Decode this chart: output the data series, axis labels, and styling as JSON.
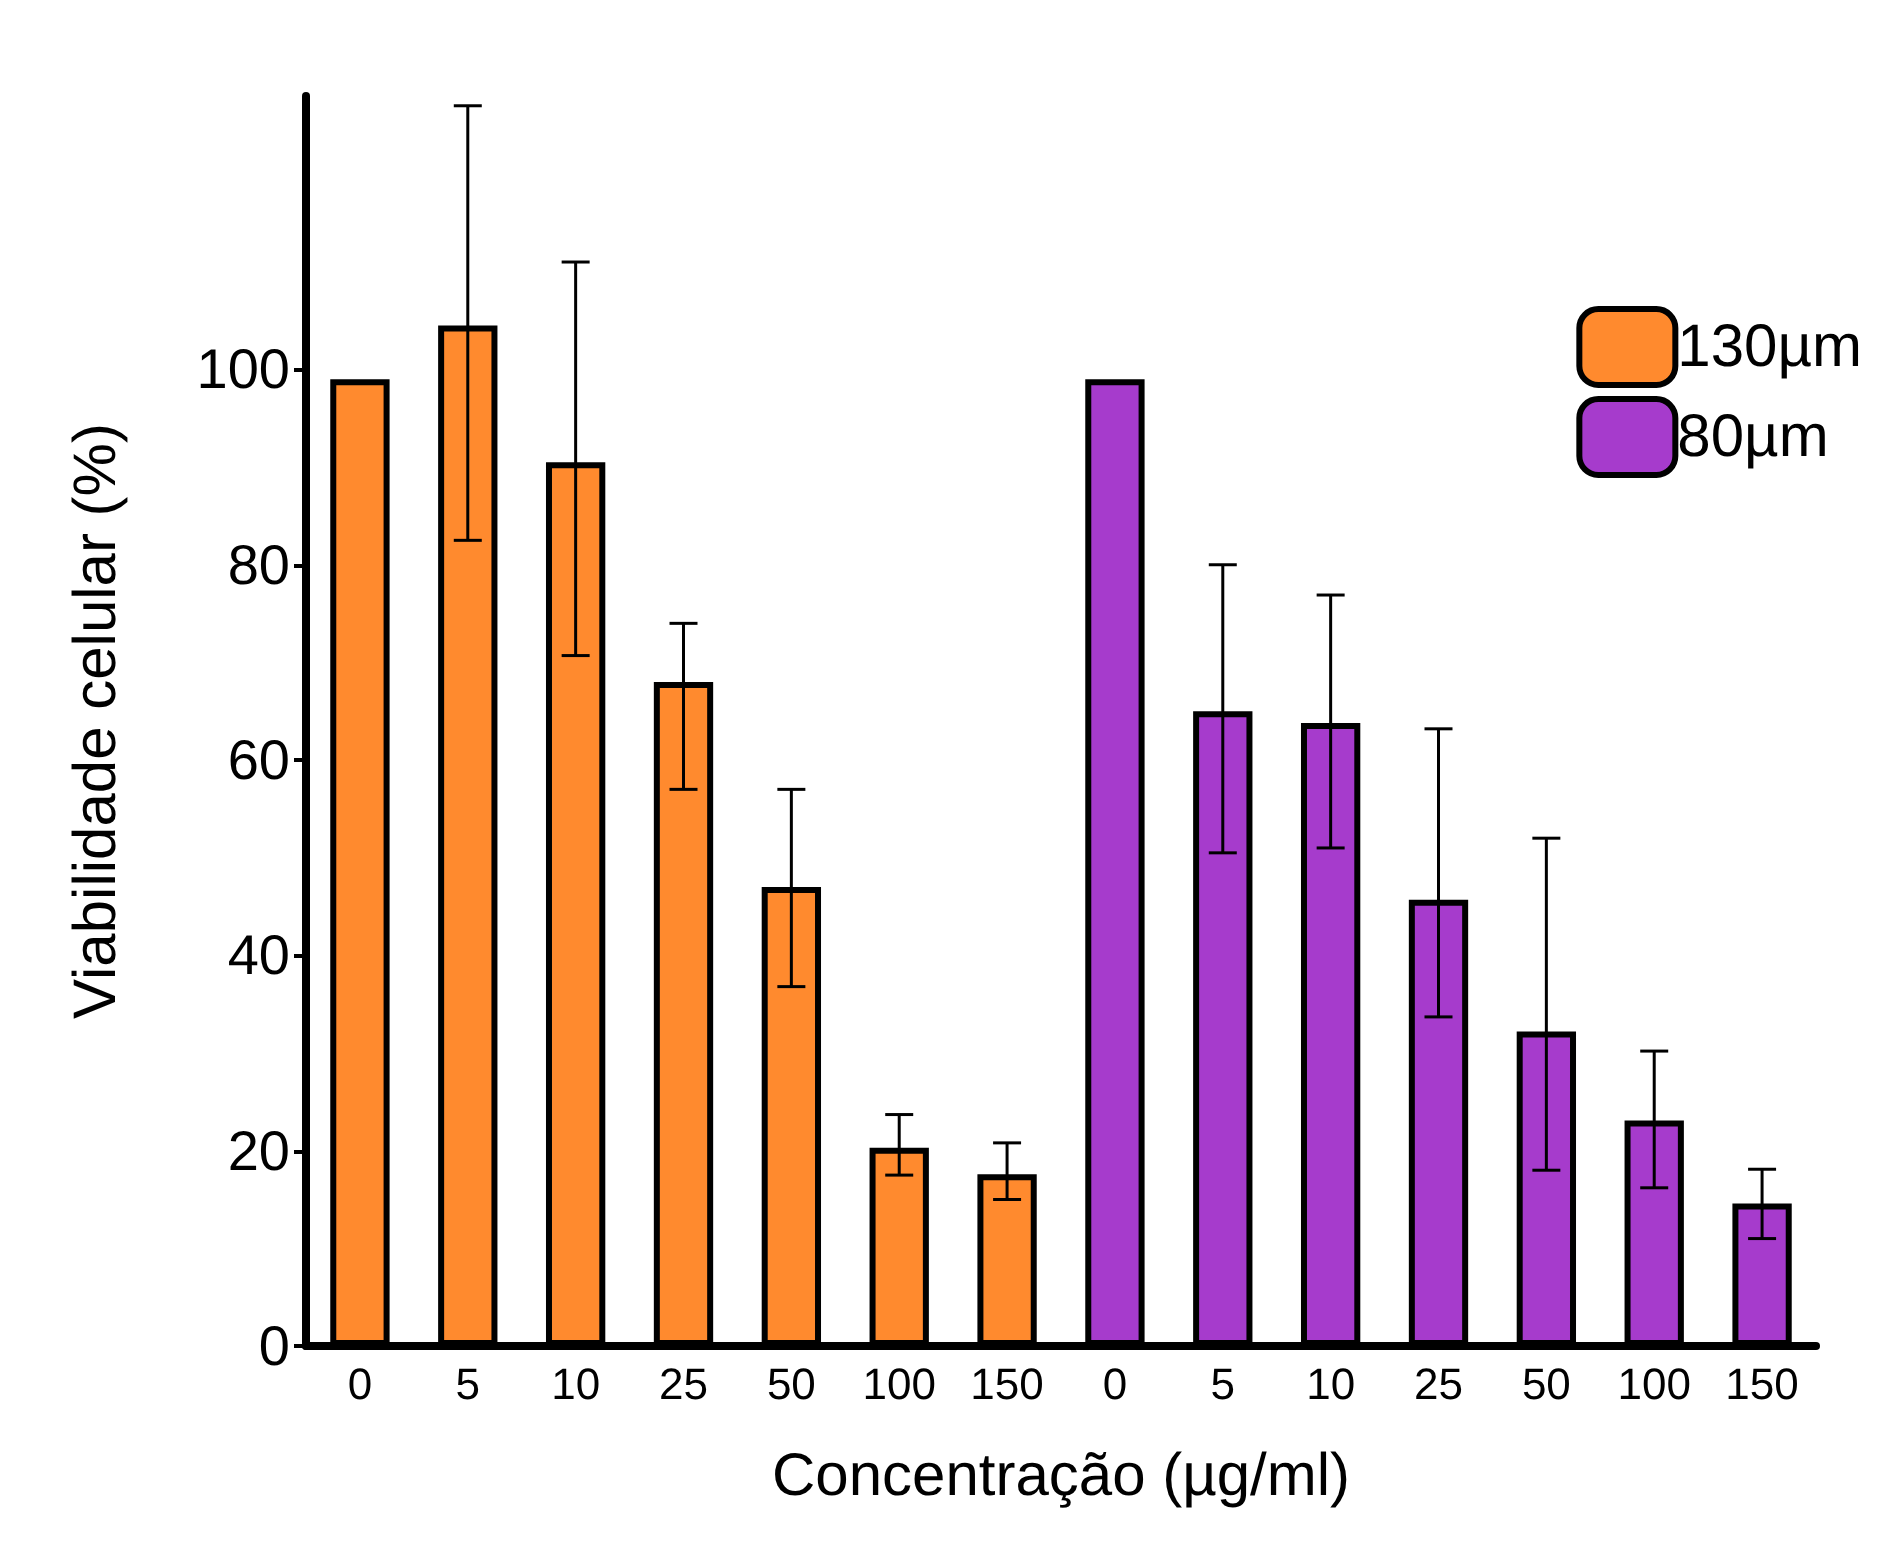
{
  "chart_data": {
    "type": "bar",
    "xlabel": "Concentração (µg/ml)",
    "ylabel": "Viabilidade celular (%)",
    "categories": [
      "0",
      "5",
      "10",
      "25",
      "50",
      "100",
      "150",
      "0",
      "5",
      "10",
      "25",
      "50",
      "100",
      "150"
    ],
    "series": [
      {
        "name": "130µm",
        "color": "#ff8a2e",
        "values": [
          99,
          104.5,
          90.5,
          68,
          47,
          20.3,
          17.6,
          null,
          null,
          null,
          null,
          null,
          null,
          null
        ],
        "errors": [
          null,
          [
            82.5,
            127
          ],
          [
            70.7,
            111
          ],
          [
            57,
            74
          ],
          [
            36.8,
            57
          ],
          [
            17.5,
            23.7
          ],
          [
            15,
            20.8
          ],
          null,
          null,
          null,
          null,
          null,
          null,
          null
        ]
      },
      {
        "name": "80µm",
        "color": "#a63bcc",
        "values": [
          null,
          null,
          null,
          null,
          null,
          null,
          null,
          99,
          65,
          63.8,
          45.7,
          32.2,
          23.1,
          14.6
        ],
        "errors": [
          null,
          null,
          null,
          null,
          null,
          null,
          null,
          null,
          [
            50.5,
            80
          ],
          [
            51,
            76.9
          ],
          [
            33.7,
            63.2
          ],
          [
            18,
            52
          ],
          [
            16.2,
            30.2
          ],
          [
            11,
            18.1
          ]
        ]
      }
    ],
    "ylim": [
      0,
      128
    ],
    "yticks": [
      0,
      20,
      40,
      60,
      80,
      100
    ],
    "grid": false,
    "legend": "top right"
  }
}
